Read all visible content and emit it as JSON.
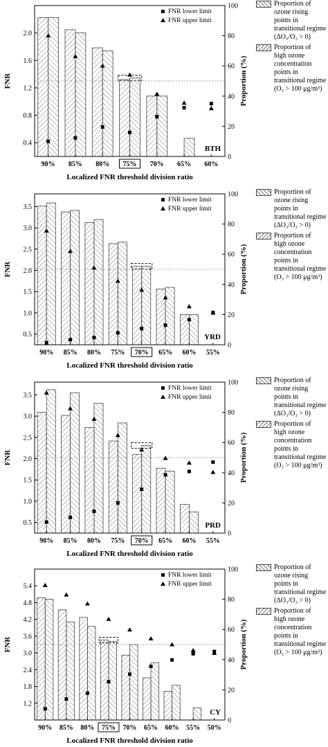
{
  "legend": {
    "bar_a_lines": [
      "Proportion of",
      "ozone rising",
      "points in",
      "transitional regime",
      "(ΔO₃/O₃ > 0)"
    ],
    "bar_b_lines": [
      "Proportion of",
      "high ozone",
      "concentration",
      "points in",
      "transitional regime",
      "(O₃ > 100 μg/m³)"
    ]
  },
  "colors": {
    "hatch": "#777777",
    "bar_border": "#444444",
    "reference_line": "#888888",
    "marker": "#000000"
  },
  "chart_data": [
    {
      "type": "bar",
      "region": "BTH",
      "xlabel": "Localized FNR threshold division ratio",
      "ylabel": "FNR",
      "y2label": "Proportion (%)",
      "categories": [
        "90%",
        "85%",
        "80%",
        "75%",
        "70%",
        "65%",
        "60%"
      ],
      "highlight": "75%",
      "ylim": [
        0.2,
        2.4
      ],
      "yticks": [
        "0.4",
        "0.8",
        "1.2",
        "1.6",
        "2.0"
      ],
      "y2lim": [
        0,
        100
      ],
      "y2ticks": [
        "0",
        "20",
        "40",
        "60",
        "80",
        "100"
      ],
      "reference_y2": 50,
      "series": [
        {
          "name": "FNR lower limit",
          "kind": "square",
          "values": [
            0.42,
            0.47,
            0.63,
            0.55,
            0.78,
            0.91,
            0.97
          ]
        },
        {
          "name": "FNR upper limit",
          "kind": "triangle",
          "values": [
            1.96,
            1.66,
            1.52,
            1.39,
            1.11,
            0.98,
            0.9
          ]
        },
        {
          "name": "Proportion of ozone rising points in transitional regime",
          "kind": "bar",
          "values": [
            92,
            84,
            72,
            51,
            40,
            0,
            0
          ]
        },
        {
          "name": "Proportion of high ozone concentration points in transitional regime",
          "kind": "bar",
          "values": [
            92,
            82,
            70,
            52,
            40,
            12,
            0
          ]
        }
      ]
    },
    {
      "type": "bar",
      "region": "YRD",
      "xlabel": "Localized FNR threshold division ratio",
      "ylabel": "FNR",
      "y2label": "Proportion (%)",
      "categories": [
        "90%",
        "85%",
        "80%",
        "75%",
        "70%",
        "65%",
        "60%",
        "55%"
      ],
      "highlight": "70%",
      "ylim": [
        0.25,
        3.8
      ],
      "yticks": [
        "0.5",
        "1.0",
        "1.5",
        "2.0",
        "2.5",
        "3.0",
        "3.5"
      ],
      "y2lim": [
        0,
        100
      ],
      "y2ticks": [
        "0",
        "20",
        "40",
        "60",
        "80",
        "100"
      ],
      "reference_y2": 50,
      "series": [
        {
          "name": "FNR lower limit",
          "kind": "square",
          "values": [
            0.3,
            0.37,
            0.42,
            0.53,
            0.63,
            0.71,
            0.84,
            1.01
          ]
        },
        {
          "name": "FNR upper limit",
          "kind": "triangle",
          "values": [
            2.93,
            2.45,
            2.06,
            1.75,
            1.54,
            1.36,
            1.15,
            1.0
          ]
        },
        {
          "name": "Proportion of ozone rising points in transitional regime",
          "kind": "bar",
          "values": [
            92,
            88,
            81,
            67,
            52,
            37,
            20,
            0
          ]
        },
        {
          "name": "Proportion of high ozone concentration points in transitional regime",
          "kind": "bar",
          "values": [
            94,
            89,
            83,
            68,
            52,
            38,
            20,
            0
          ]
        }
      ]
    },
    {
      "type": "bar",
      "region": "PRD",
      "xlabel": "Localized FNR threshold division ratio",
      "ylabel": "FNR",
      "y2label": "Proportion (%)",
      "categories": [
        "90%",
        "85%",
        "80%",
        "75%",
        "70%",
        "65%",
        "60%",
        "55%"
      ],
      "highlight": "70%",
      "ylim": [
        0.25,
        3.8
      ],
      "yticks": [
        "0.5",
        "1.0",
        "1.5",
        "2.0",
        "2.5",
        "3.0",
        "3.5"
      ],
      "y2lim": [
        0,
        100
      ],
      "y2ticks": [
        "0",
        "20",
        "40",
        "60",
        "80",
        "100"
      ],
      "reference_y2": 50,
      "series": [
        {
          "name": "FNR lower limit",
          "kind": "square",
          "values": [
            0.51,
            0.62,
            0.76,
            0.96,
            1.28,
            1.62,
            1.7,
            1.92
          ]
        },
        {
          "name": "FNR upper limit",
          "kind": "triangle",
          "values": [
            3.55,
            3.18,
            2.93,
            2.55,
            2.21,
            2.01,
            1.9,
            1.68
          ]
        },
        {
          "name": "Proportion of ozone rising points in transitional regime",
          "kind": "bar",
          "values": [
            80,
            78,
            70,
            61,
            52,
            43,
            19,
            0
          ]
        },
        {
          "name": "Proportion of high ozone concentration points in transitional regime",
          "kind": "bar",
          "values": [
            95,
            93,
            86,
            73,
            58,
            41,
            14,
            0
          ]
        }
      ]
    },
    {
      "type": "bar",
      "region": "CY",
      "xlabel": "Localized FNR threshold division ratio",
      "ylabel": "FNR",
      "y2label": "Proportion (%)",
      "categories": [
        "90%",
        "85%",
        "80%",
        "75%",
        "70%",
        "65%",
        "60%",
        "55%",
        "50%"
      ],
      "highlight": "75%",
      "ylim": [
        0.6,
        6.0
      ],
      "yticks": [
        "1.2",
        "1.8",
        "2.4",
        "3.0",
        "3.6",
        "4.2",
        "4.8",
        "5.4"
      ],
      "y2lim": [
        0,
        100
      ],
      "y2ticks": [
        "0",
        "20",
        "40",
        "60",
        "80",
        "100"
      ],
      "reference_y2": 50,
      "series": [
        {
          "name": "FNR lower limit",
          "kind": "square",
          "values": [
            1.0,
            1.35,
            1.56,
            1.97,
            2.24,
            2.52,
            2.75,
            2.97,
            3.05
          ]
        },
        {
          "name": "FNR upper limit",
          "kind": "triangle",
          "values": [
            5.42,
            5.08,
            4.76,
            4.21,
            3.83,
            3.51,
            3.3,
            3.09,
            2.99
          ]
        },
        {
          "name": "Proportion of ozone rising points in transitional regime",
          "kind": "bar",
          "values": [
            81,
            73,
            68,
            53,
            43,
            28,
            19,
            0,
            0
          ]
        },
        {
          "name": "Proportion of high ozone concentration points in transitional regime",
          "kind": "bar",
          "values": [
            80,
            65,
            62,
            52,
            50,
            38,
            23,
            8,
            0
          ]
        }
      ]
    }
  ]
}
